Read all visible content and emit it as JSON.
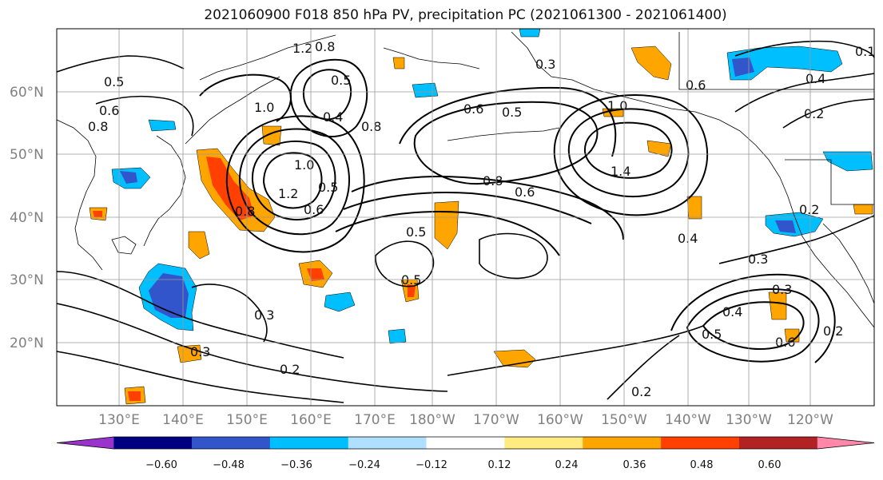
{
  "title": "2021060900 F018 850 hPa PV, precipitation PC (2021061300 - 2021061400)",
  "lat_labels": [
    "60°N",
    "50°N",
    "40°N",
    "30°N",
    "20°N"
  ],
  "lon_labels": [
    "130°E",
    "140°E",
    "150°E",
    "160°E",
    "170°E",
    "180°W",
    "170°W",
    "160°W",
    "150°W",
    "140°W",
    "130°W",
    "120°W"
  ],
  "colorbar": {
    "tick_labels": [
      "−0.60",
      "−0.48",
      "−0.36",
      "−0.24",
      "−0.12",
      "0.12",
      "0.24",
      "0.36",
      "0.48",
      "0.60"
    ],
    "colors": [
      "#9933cc",
      "#000080",
      "#3355cc",
      "#00bfff",
      "#b0e0ff",
      "#ffffff",
      "#ffeb80",
      "#ffa500",
      "#ff4000",
      "#b22222",
      "#ff88aa"
    ]
  },
  "contour_labels": [
    "1.2",
    "0.8",
    "0.5",
    "0.6",
    "0.8",
    "1.0",
    "0.5",
    "0.6",
    "0.8",
    "0.5",
    "1.0",
    "1.0",
    "0.6",
    "0.5",
    "0.8",
    "0.6",
    "0.5",
    "0.4",
    "0.3",
    "0.3",
    "0.5",
    "0.4",
    "0.6",
    "0.3",
    "0.2",
    "0.2",
    "0.3",
    "0.2",
    "0.4",
    "0.2",
    "1.2",
    "0.8",
    "1.4",
    "0.4",
    "0.3",
    "0.2",
    "0.1",
    "0.5",
    "0.6"
  ]
}
